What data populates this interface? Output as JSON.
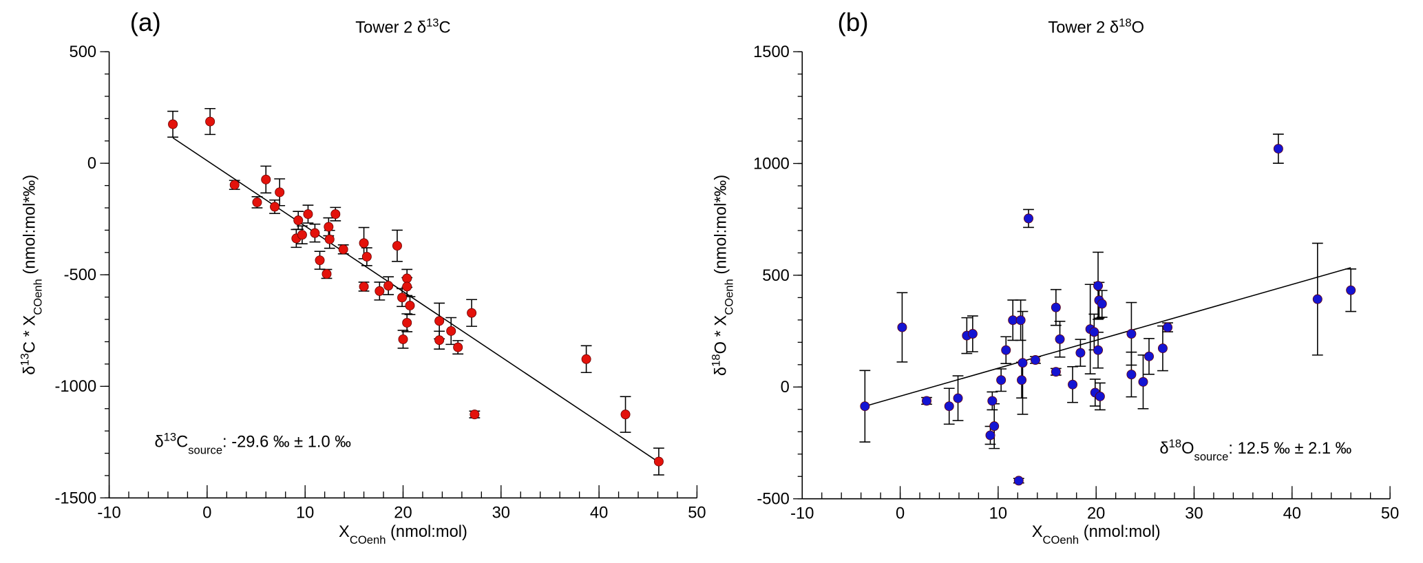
{
  "chart_data": [
    {
      "type": "scatter",
      "panel": "(a)",
      "title": [
        {
          "text": "Tower 2 δ"
        },
        {
          "text": "13",
          "style": "sup"
        },
        {
          "text": "C"
        }
      ],
      "x_label": [
        {
          "text": "X"
        },
        {
          "text": "COenh",
          "style": "sub"
        },
        {
          "text": " (nmol:mol)"
        }
      ],
      "y_label": [
        {
          "text": "δ"
        },
        {
          "text": "13",
          "style": "sup"
        },
        {
          "text": "C * X"
        },
        {
          "text": "COenh",
          "style": "sub"
        },
        {
          "text": " (nmol:mol*‰)"
        }
      ],
      "annotation": [
        {
          "text": "δ"
        },
        {
          "text": "13",
          "style": "sup"
        },
        {
          "text": "C"
        },
        {
          "text": "source",
          "style": "sub"
        },
        {
          "text": ":  -29.6 ‰ ±  1.0 ‰"
        }
      ],
      "xlim": [
        -10,
        50
      ],
      "xticks": [
        -10,
        0,
        10,
        20,
        30,
        40,
        50
      ],
      "xminor_step": 2,
      "ylim": [
        -1500,
        500
      ],
      "yticks": [
        -1500,
        -1000,
        -500,
        0,
        500
      ],
      "yminor_step": 100,
      "series": [
        {
          "color": "#e3120b",
          "x": [
            -3.5,
            0.3,
            2.8,
            5.1,
            6.0,
            6.9,
            7.4,
            9.3,
            9.1,
            9.7,
            10.3,
            11.0,
            11.5,
            12.2,
            12.4,
            12.5,
            13.1,
            13.9,
            16.0,
            16.3,
            16.0,
            17.6,
            18.5,
            19.4,
            19.9,
            20.0,
            20.4,
            20.4,
            20.4,
            20.7,
            23.7,
            23.7,
            24.9,
            25.6,
            27.0,
            27.3,
            38.7,
            42.7,
            46.1
          ],
          "values": [
            175,
            187,
            -97,
            -175,
            -73,
            -195,
            -130,
            -256,
            -337,
            -321,
            -228,
            -313,
            -435,
            -496,
            -285,
            -341,
            -228,
            -386,
            -358,
            -419,
            -553,
            -573,
            -549,
            -370,
            -602,
            -789,
            -516,
            -553,
            -715,
            -638,
            -707,
            -793,
            -752,
            -825,
            -671,
            -1126,
            -878,
            -1126,
            -1337
          ],
          "errors": [
            58,
            58,
            20,
            25,
            60,
            30,
            60,
            40,
            40,
            40,
            40,
            40,
            40,
            20,
            40,
            40,
            30,
            20,
            70,
            40,
            20,
            40,
            40,
            70,
            40,
            40,
            40,
            40,
            40,
            40,
            80,
            40,
            60,
            30,
            60,
            15,
            60,
            80,
            60
          ]
        }
      ],
      "fit": {
        "color": "#000000",
        "x": [
          -3.5,
          46.1
        ],
        "values": [
          114,
          -1340
        ]
      }
    },
    {
      "type": "scatter",
      "panel": "(b)",
      "title": [
        {
          "text": "Tower 2 δ"
        },
        {
          "text": "18",
          "style": "sup"
        },
        {
          "text": "O"
        }
      ],
      "x_label": [
        {
          "text": "X"
        },
        {
          "text": "COenh",
          "style": "sub"
        },
        {
          "text": " (nmol:mol)"
        }
      ],
      "y_label": [
        {
          "text": "δ"
        },
        {
          "text": "18",
          "style": "sup"
        },
        {
          "text": "O * X"
        },
        {
          "text": "COenh",
          "style": "sub"
        },
        {
          "text": " (nmol:mol*‰)"
        }
      ],
      "annotation": [
        {
          "text": "δ"
        },
        {
          "text": "18",
          "style": "sup"
        },
        {
          "text": "O"
        },
        {
          "text": "source",
          "style": "sub"
        },
        {
          "text": ":  12.5 ‰ ±  2.1 ‰"
        }
      ],
      "xlim": [
        -10,
        50
      ],
      "xticks": [
        -10,
        0,
        10,
        20,
        30,
        40,
        50
      ],
      "xminor_step": 2,
      "ylim": [
        -500,
        1500
      ],
      "yticks": [
        -500,
        0,
        500,
        1000,
        1500
      ],
      "yminor_step": 100,
      "series": [
        {
          "color": "#1414d2",
          "x": [
            -3.6,
            0.2,
            2.7,
            5.0,
            5.9,
            6.8,
            7.4,
            9.2,
            9.4,
            9.6,
            10.3,
            10.8,
            11.5,
            12.1,
            12.3,
            12.4,
            12.5,
            13.1,
            13.8,
            15.9,
            15.9,
            16.3,
            17.6,
            18.4,
            19.4,
            19.8,
            19.9,
            20.2,
            20.2,
            20.3,
            20.4,
            20.6,
            23.6,
            23.6,
            24.8,
            25.4,
            26.8,
            27.3,
            38.6,
            42.6,
            46.0
          ],
          "values": [
            -86,
            267,
            -62,
            -86,
            -50,
            230,
            238,
            -216,
            -62,
            -175,
            31,
            165,
            299,
            -419,
            299,
            31,
            108,
            754,
            121,
            68,
            356,
            214,
            11,
            153,
            259,
            246,
            -25,
            453,
            165,
            388,
            -42,
            372,
            238,
            56,
            23,
            137,
            173,
            267,
            1066,
            393,
            433
          ],
          "errors": [
            160,
            155,
            15,
            80,
            100,
            80,
            80,
            40,
            40,
            100,
            50,
            60,
            90,
            10,
            90,
            80,
            230,
            40,
            15,
            15,
            80,
            80,
            80,
            60,
            200,
            80,
            60,
            150,
            80,
            80,
            60,
            60,
            140,
            100,
            120,
            80,
            100,
            20,
            65,
            250,
            95
          ]
        }
      ],
      "fit": {
        "color": "#000000",
        "x": [
          -3.6,
          46.0
        ],
        "values": [
          -86,
          534
        ]
      }
    }
  ]
}
